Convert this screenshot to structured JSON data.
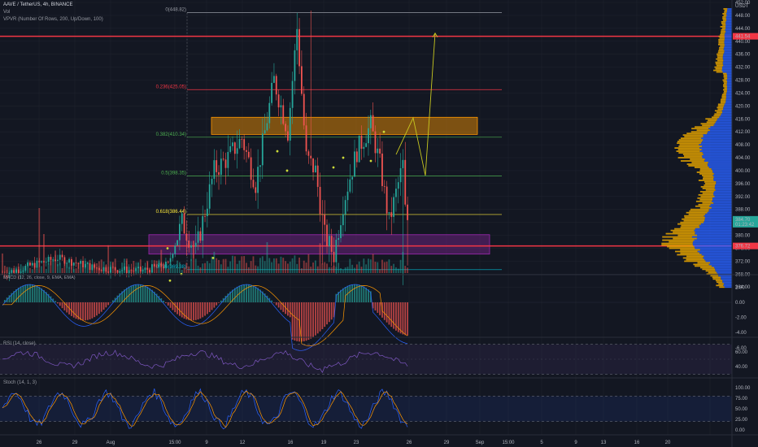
{
  "header": {
    "symbol_line": "AAVE / TetherUS, 4h, BINANCE",
    "vol_label": "Vol",
    "vpvr_label": "VPVR (Number Of Rows, 200, Up/Down, 100)",
    "currency": "USDT",
    "macd_label": "MACD (12, 26, close, 9, EMA, EMA)",
    "rsi_label": "RSI (14, close)",
    "stoch_label": "Stoch (14, 1, 3)"
  },
  "colors": {
    "background": "#131722",
    "up": "#26a69a",
    "down": "#ef5350",
    "red_level": "#f23645",
    "fib_green": "#4caf50",
    "fib_yellow": "#ffeb3b",
    "zone_orange": "#ff9800",
    "zone_purple": "#9c27b0",
    "vp_up": "#2962ff",
    "vp_down": "#e0a000",
    "projection": "#c8c820",
    "rsi_line": "#7e57c2",
    "stoch_k": "#2962ff",
    "stoch_d": "#ff9800"
  },
  "chart_data": {
    "type": "candlestick",
    "price_ticks": [
      "452.00",
      "448.00",
      "444.00",
      "440.00",
      "436.00",
      "432.00",
      "428.00",
      "424.00",
      "420.00",
      "416.00",
      "412.00",
      "408.00",
      "404.00",
      "400.00",
      "396.00",
      "392.00",
      "388.00",
      "384.00",
      "380.00",
      "376.00",
      "372.00",
      "368.00",
      "364.00"
    ],
    "current_price": "384.70",
    "countdown": "01:23:42",
    "red_levels": [
      {
        "price": 441.54,
        "label": "441.54"
      },
      {
        "price": 376.72,
        "label": "376.72"
      }
    ],
    "fib_levels": [
      {
        "ratio": "0",
        "price": 448.82,
        "text": "0(448.82)",
        "color": "#9598a1"
      },
      {
        "ratio": "0.236",
        "price": 425.05,
        "text": "0.236(425.05)",
        "color": "#f23645"
      },
      {
        "ratio": "0.382",
        "price": 410.34,
        "text": "0.382(410.34)",
        "color": "#4caf50"
      },
      {
        "ratio": "0.5",
        "price": 398.35,
        "text": "0.5(398.35)",
        "color": "#4caf50"
      },
      {
        "ratio": "0.618",
        "price": 386.44,
        "text": "0.618(386.44)",
        "color": "#ffeb3b"
      },
      {
        "ratio": "0.786",
        "price": 369.38,
        "text": "0.786(369.38)",
        "color": "#00bcd4"
      }
    ],
    "zones": [
      {
        "name": "resistance",
        "top": 416.5,
        "bottom": 411.2,
        "color": "orange"
      },
      {
        "name": "support",
        "top": 380.2,
        "bottom": 374.2,
        "color": "purple"
      }
    ],
    "projection_path": [
      [
        415,
        416.3
      ],
      [
        425,
        398.5
      ],
      [
        440,
        442.5
      ]
    ],
    "dates": [
      "26",
      "29",
      "Aug",
      "15:00",
      "9",
      "12",
      "16",
      "19",
      "23",
      "26",
      "29",
      "Sep",
      "15:00",
      "5",
      "9",
      "13",
      "16",
      "20"
    ],
    "macd_ticks": [
      "2.00",
      "0.00",
      "-2.00",
      "-4.00",
      "-6.00"
    ],
    "rsi_ticks": [
      "60.00",
      "40.00"
    ],
    "rsi_bands": [
      70,
      30
    ],
    "stoch_ticks": [
      "100.00",
      "75.00",
      "50.00",
      "25.00",
      "0.00"
    ],
    "stoch_bands": [
      80,
      20
    ],
    "candles_summary": {
      "range_low": 364.6,
      "range_high": 448.8,
      "last_close": 384.7
    }
  }
}
